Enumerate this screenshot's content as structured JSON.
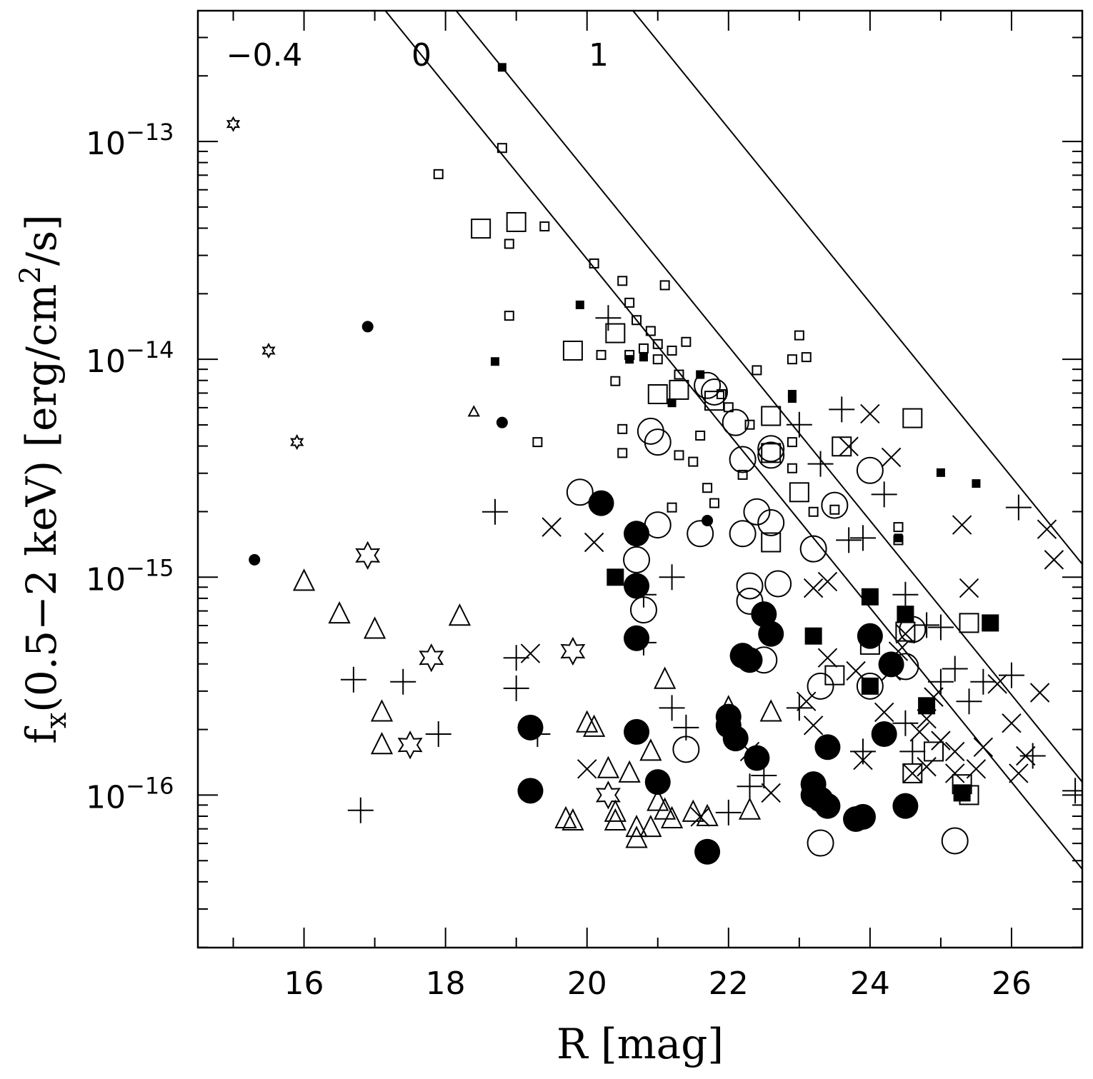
{
  "chart_data": {
    "type": "scatter",
    "title": "",
    "xlabel": "R [mag]",
    "ylabel_main": "f",
    "ylabel_sub": "x",
    "ylabel_rest": "(0.5−2 keV) [erg/cm",
    "ylabel_sup": "2",
    "ylabel_end": "/s]",
    "xlim": [
      14.5,
      27.0
    ],
    "ylim_log10": [
      -16.7,
      -12.4
    ],
    "x_ticks": [
      {
        "value": 16,
        "label": "16"
      },
      {
        "value": 18,
        "label": "18"
      },
      {
        "value": 20,
        "label": "20"
      },
      {
        "value": 22,
        "label": "22"
      },
      {
        "value": 24,
        "label": "24"
      },
      {
        "value": 26,
        "label": "26"
      }
    ],
    "y_ticks": [
      {
        "exp": -13,
        "base": "10",
        "sup": "−13"
      },
      {
        "exp": -14,
        "base": "10",
        "sup": "−14"
      },
      {
        "exp": -15,
        "base": "10",
        "sup": "−15"
      },
      {
        "exp": -16,
        "base": "10",
        "sup": "−16"
      }
    ],
    "reference_lines": [
      {
        "label": "−0.4",
        "offset": -0.4
      },
      {
        "label": "0",
        "offset": 0
      },
      {
        "label": "1",
        "offset": 1
      }
    ],
    "series": [
      {
        "name": "small-open-squares",
        "marker": "square-open-small",
        "points": [
          [
            18.8,
            -13.03
          ],
          [
            17.9,
            -13.15
          ],
          [
            18.9,
            -13.47
          ],
          [
            19.4,
            -13.39
          ],
          [
            18.9,
            -13.8
          ],
          [
            20.1,
            -13.56
          ],
          [
            20.5,
            -13.64
          ],
          [
            20.6,
            -13.74
          ],
          [
            20.7,
            -13.82
          ],
          [
            20.9,
            -13.87
          ],
          [
            21.1,
            -13.66
          ],
          [
            20.8,
            -13.95
          ],
          [
            21.0,
            -13.93
          ],
          [
            21.2,
            -13.96
          ],
          [
            21.4,
            -13.92
          ],
          [
            20.2,
            -13.98
          ],
          [
            20.6,
            -13.98
          ],
          [
            21.0,
            -14.0
          ],
          [
            20.4,
            -14.1
          ],
          [
            21.3,
            -14.07
          ],
          [
            22.4,
            -14.05
          ],
          [
            23.0,
            -13.89
          ],
          [
            23.1,
            -13.99
          ],
          [
            22.9,
            -14.0
          ],
          [
            20.5,
            -14.32
          ],
          [
            20.5,
            -14.43
          ],
          [
            21.3,
            -14.44
          ],
          [
            21.5,
            -14.47
          ],
          [
            21.6,
            -14.35
          ],
          [
            21.7,
            -14.59
          ],
          [
            21.8,
            -14.66
          ],
          [
            21.2,
            -14.68
          ],
          [
            19.3,
            -14.38
          ],
          [
            21.9,
            -14.16
          ],
          [
            22.0,
            -14.22
          ],
          [
            22.3,
            -14.3
          ],
          [
            22.9,
            -14.38
          ],
          [
            23.2,
            -14.7
          ],
          [
            23.5,
            -14.69
          ],
          [
            24.4,
            -14.77
          ],
          [
            24.4,
            -14.83
          ],
          [
            22.9,
            -14.5
          ],
          [
            22.2,
            -14.53
          ]
        ]
      },
      {
        "name": "large-open-squares",
        "marker": "square-open-large",
        "points": [
          [
            18.5,
            -13.4
          ],
          [
            19.0,
            -13.37
          ],
          [
            19.8,
            -13.96
          ],
          [
            20.4,
            -13.88
          ],
          [
            21.0,
            -14.16
          ],
          [
            21.3,
            -14.14
          ],
          [
            21.8,
            -14.19
          ],
          [
            22.6,
            -14.26
          ],
          [
            23.6,
            -14.4
          ],
          [
            24.6,
            -14.27
          ],
          [
            22.6,
            -14.43
          ],
          [
            23.0,
            -14.61
          ],
          [
            22.6,
            -14.84
          ],
          [
            24.0,
            -15.31
          ],
          [
            24.5,
            -15.25
          ],
          [
            25.4,
            -15.21
          ],
          [
            25.3,
            -15.95
          ],
          [
            25.4,
            -16.0
          ],
          [
            24.6,
            -15.9
          ],
          [
            23.5,
            -15.45
          ],
          [
            24.9,
            -15.8
          ]
        ]
      },
      {
        "name": "small-filled-squares",
        "marker": "square-filled-small",
        "points": [
          [
            18.8,
            -12.66
          ],
          [
            19.9,
            -13.75
          ],
          [
            18.7,
            -14.01
          ],
          [
            20.6,
            -14.0
          ],
          [
            20.8,
            -13.99
          ],
          [
            21.2,
            -14.2
          ],
          [
            21.6,
            -14.07
          ],
          [
            22.9,
            -14.16
          ],
          [
            22.9,
            -14.18
          ],
          [
            25.0,
            -14.52
          ],
          [
            25.5,
            -14.57
          ],
          [
            24.4,
            -14.82
          ]
        ]
      },
      {
        "name": "large-filled-squares",
        "marker": "square-filled-large",
        "points": [
          [
            20.4,
            -15.0
          ],
          [
            23.2,
            -15.27
          ],
          [
            24.0,
            -15.09
          ],
          [
            24.5,
            -15.17
          ],
          [
            25.7,
            -15.21
          ],
          [
            24.0,
            -15.5
          ],
          [
            24.8,
            -15.59
          ],
          [
            25.3,
            -15.99
          ]
        ]
      },
      {
        "name": "small-filled-circles",
        "marker": "circle-filled-small",
        "points": [
          [
            16.9,
            -13.85
          ],
          [
            18.8,
            -14.29
          ],
          [
            15.3,
            -14.92
          ],
          [
            21.7,
            -14.74
          ]
        ]
      },
      {
        "name": "large-filled-circles",
        "marker": "circle-filled-large",
        "points": [
          [
            20.2,
            -14.66
          ],
          [
            20.7,
            -14.8
          ],
          [
            20.7,
            -15.04
          ],
          [
            20.7,
            -15.28
          ],
          [
            19.2,
            -15.69
          ],
          [
            19.2,
            -15.98
          ],
          [
            20.7,
            -15.71
          ],
          [
            21.0,
            -15.94
          ],
          [
            22.0,
            -15.64
          ],
          [
            22.0,
            -15.68
          ],
          [
            22.1,
            -15.74
          ],
          [
            22.2,
            -15.36
          ],
          [
            22.3,
            -15.38
          ],
          [
            22.4,
            -15.83
          ],
          [
            22.5,
            -15.17
          ],
          [
            22.6,
            -15.26
          ],
          [
            23.2,
            -15.95
          ],
          [
            23.2,
            -16.0
          ],
          [
            23.3,
            -16.02
          ],
          [
            23.4,
            -16.05
          ],
          [
            23.4,
            -15.78
          ],
          [
            23.8,
            -16.11
          ],
          [
            23.9,
            -16.1
          ],
          [
            24.0,
            -15.27
          ],
          [
            24.2,
            -15.72
          ],
          [
            24.3,
            -15.4
          ],
          [
            24.5,
            -16.05
          ],
          [
            21.7,
            -16.26
          ]
        ]
      },
      {
        "name": "large-open-circles",
        "marker": "circle-open",
        "points": [
          [
            19.9,
            -14.61
          ],
          [
            20.7,
            -14.92
          ],
          [
            20.8,
            -15.15
          ],
          [
            20.9,
            -14.33
          ],
          [
            21.0,
            -14.38
          ],
          [
            21.0,
            -14.76
          ],
          [
            21.4,
            -15.79
          ],
          [
            21.6,
            -14.8
          ],
          [
            21.7,
            -14.12
          ],
          [
            21.8,
            -14.15
          ],
          [
            22.1,
            -14.29
          ],
          [
            22.2,
            -14.46
          ],
          [
            22.2,
            -14.8
          ],
          [
            22.3,
            -15.04
          ],
          [
            22.3,
            -15.11
          ],
          [
            22.4,
            -14.7
          ],
          [
            22.5,
            -15.38
          ],
          [
            22.6,
            -14.75
          ],
          [
            22.6,
            -14.41
          ],
          [
            22.6,
            -14.44
          ],
          [
            22.7,
            -15.03
          ],
          [
            23.2,
            -14.87
          ],
          [
            23.3,
            -15.5
          ],
          [
            23.3,
            -16.22
          ],
          [
            23.5,
            -14.67
          ],
          [
            24.0,
            -14.51
          ],
          [
            24.0,
            -15.5
          ],
          [
            24.5,
            -15.41
          ],
          [
            24.6,
            -15.24
          ],
          [
            25.2,
            -16.21
          ]
        ]
      },
      {
        "name": "small-open-triangles",
        "marker": "triangle-open-small",
        "points": [
          [
            18.4,
            -14.24
          ]
        ]
      },
      {
        "name": "large-open-triangles",
        "marker": "triangle-open",
        "points": [
          [
            16.0,
            -15.02
          ],
          [
            16.5,
            -15.17
          ],
          [
            17.0,
            -15.24
          ],
          [
            17.1,
            -15.62
          ],
          [
            17.1,
            -15.77
          ],
          [
            18.2,
            -15.18
          ],
          [
            19.7,
            -16.11
          ],
          [
            19.8,
            -16.12
          ],
          [
            20.0,
            -15.67
          ],
          [
            20.1,
            -15.69
          ],
          [
            20.3,
            -15.88
          ],
          [
            20.4,
            -16.08
          ],
          [
            20.4,
            -16.12
          ],
          [
            20.6,
            -15.9
          ],
          [
            20.7,
            -16.15
          ],
          [
            20.7,
            -16.2
          ],
          [
            20.9,
            -15.8
          ],
          [
            20.9,
            -16.15
          ],
          [
            21.1,
            -15.47
          ],
          [
            21.0,
            -16.03
          ],
          [
            21.1,
            -16.07
          ],
          [
            21.2,
            -16.11
          ],
          [
            21.5,
            -16.08
          ],
          [
            21.7,
            -16.1
          ],
          [
            22.0,
            -15.6
          ],
          [
            22.3,
            -16.07
          ],
          [
            22.6,
            -15.62
          ]
        ]
      },
      {
        "name": "small-open-stars",
        "marker": "star-small",
        "points": [
          [
            15.0,
            -12.92
          ],
          [
            15.5,
            -13.96
          ],
          [
            15.9,
            -14.38
          ]
        ]
      },
      {
        "name": "large-open-stars",
        "marker": "star-large",
        "points": [
          [
            16.9,
            -14.9
          ],
          [
            17.5,
            -15.77
          ],
          [
            17.8,
            -15.37
          ],
          [
            19.8,
            -15.34
          ],
          [
            20.3,
            -16.0
          ]
        ]
      },
      {
        "name": "plus-signs",
        "marker": "plus",
        "points": [
          [
            16.7,
            -15.47
          ],
          [
            17.4,
            -15.48
          ],
          [
            16.8,
            -16.07
          ],
          [
            17.9,
            -15.72
          ],
          [
            18.7,
            -14.7
          ],
          [
            19.0,
            -15.37
          ],
          [
            19.0,
            -15.51
          ],
          [
            19.3,
            -15.72
          ],
          [
            20.3,
            -13.81
          ],
          [
            20.8,
            -15.3
          ],
          [
            20.8,
            -15.08
          ],
          [
            21.2,
            -15.0
          ],
          [
            21.2,
            -15.6
          ],
          [
            21.4,
            -15.69
          ],
          [
            22.0,
            -16.08
          ],
          [
            22.3,
            -15.96
          ],
          [
            22.5,
            -15.91
          ],
          [
            23.0,
            -14.3
          ],
          [
            23.0,
            -15.6
          ],
          [
            23.3,
            -14.48
          ],
          [
            23.6,
            -14.23
          ],
          [
            23.7,
            -14.83
          ],
          [
            23.9,
            -14.82
          ],
          [
            24.2,
            -14.62
          ],
          [
            24.5,
            -15.08
          ],
          [
            24.8,
            -15.22
          ],
          [
            25.0,
            -15.23
          ],
          [
            25.2,
            -15.42
          ],
          [
            25.4,
            -15.57
          ],
          [
            25.6,
            -15.48
          ],
          [
            26.0,
            -15.45
          ],
          [
            26.1,
            -14.68
          ],
          [
            26.3,
            -15.82
          ],
          [
            26.9,
            -15.98
          ],
          [
            23.9,
            -15.8
          ],
          [
            24.5,
            -15.67
          ],
          [
            24.6,
            -15.8
          ],
          [
            25.0,
            -15.48
          ]
        ]
      },
      {
        "name": "cross-marks",
        "marker": "cross",
        "points": [
          [
            19.2,
            -15.35
          ],
          [
            19.5,
            -14.77
          ],
          [
            20.1,
            -14.84
          ],
          [
            20.0,
            -15.88
          ],
          [
            21.6,
            -16.1
          ],
          [
            22.3,
            -15.8
          ],
          [
            22.6,
            -15.99
          ],
          [
            23.1,
            -15.57
          ],
          [
            23.2,
            -15.05
          ],
          [
            23.4,
            -15.02
          ],
          [
            23.4,
            -15.37
          ],
          [
            23.8,
            -15.43
          ],
          [
            23.9,
            -15.84
          ],
          [
            24.0,
            -14.25
          ],
          [
            24.2,
            -15.62
          ],
          [
            24.3,
            -15.43
          ],
          [
            24.4,
            -15.34
          ],
          [
            24.5,
            -15.26
          ],
          [
            24.6,
            -15.9
          ],
          [
            24.8,
            -15.65
          ],
          [
            24.9,
            -15.55
          ],
          [
            25.0,
            -15.75
          ],
          [
            25.2,
            -15.9
          ],
          [
            25.3,
            -14.76
          ],
          [
            25.4,
            -15.05
          ],
          [
            25.5,
            -15.88
          ],
          [
            25.8,
            -15.49
          ],
          [
            26.0,
            -15.67
          ],
          [
            26.1,
            -15.9
          ],
          [
            26.2,
            -15.82
          ],
          [
            26.4,
            -15.53
          ],
          [
            26.5,
            -14.78
          ],
          [
            26.6,
            -14.92
          ],
          [
            24.8,
            -15.87
          ],
          [
            25.2,
            -15.8
          ],
          [
            25.6,
            -15.78
          ],
          [
            23.7,
            -14.4
          ],
          [
            24.3,
            -14.45
          ],
          [
            23.2,
            -15.68
          ],
          [
            24.7,
            -15.71
          ]
        ]
      }
    ]
  }
}
